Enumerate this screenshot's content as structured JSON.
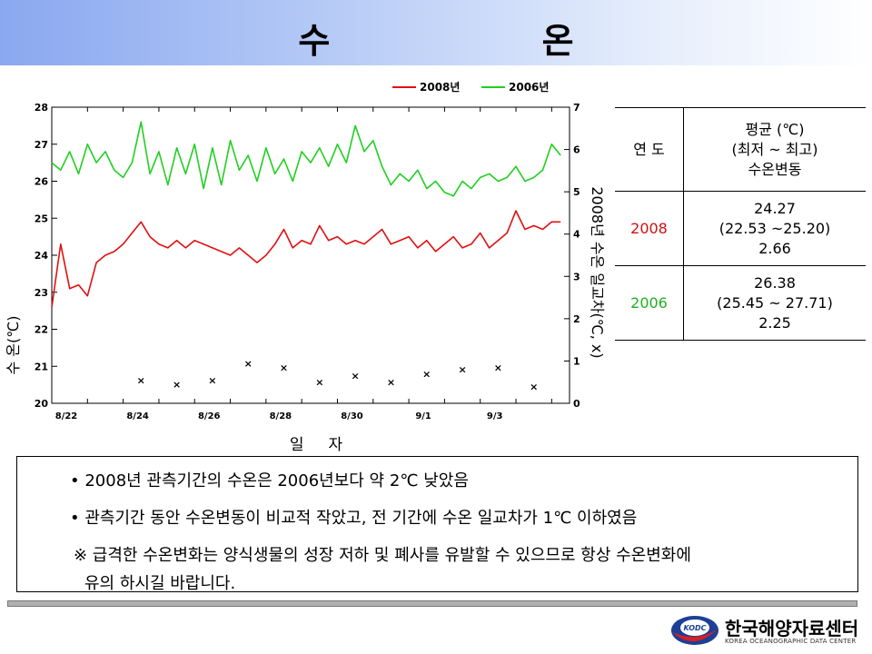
{
  "title": "수     온",
  "chart_data": {
    "type": "line",
    "legend": [
      "2008년",
      "2006년"
    ],
    "legend_position": "top-right",
    "x_ticks": [
      "8/22",
      "8/24",
      "8/26",
      "8/28",
      "8/30",
      "9/1",
      "9/3"
    ],
    "xlabel": "일     자",
    "ylabel_left": "수  온(℃)",
    "ylabel_right": "2008년 수온 일교차(℃, x)",
    "ylim_left": [
      20,
      28
    ],
    "ylim_right": [
      0,
      7
    ],
    "y_ticks_left": [
      "20",
      "21",
      "22",
      "23",
      "24",
      "25",
      "26",
      "27",
      "28"
    ],
    "y_ticks_right": [
      "0",
      "1",
      "2",
      "3",
      "4",
      "5",
      "6",
      "7"
    ],
    "series": [
      {
        "name": "2008년",
        "color": "#e01010",
        "x": [
          0,
          0.25,
          0.5,
          0.75,
          1,
          1.25,
          1.5,
          1.75,
          2,
          2.25,
          2.5,
          2.75,
          3,
          3.25,
          3.5,
          3.75,
          4,
          4.25,
          4.5,
          4.75,
          5,
          5.25,
          5.5,
          5.75,
          6,
          6.25,
          6.5,
          6.75,
          7,
          7.25,
          7.5,
          7.75,
          8,
          8.25,
          8.5,
          8.75,
          9,
          9.25,
          9.5,
          9.75,
          10,
          10.25,
          10.5,
          10.75,
          11,
          11.25,
          11.5,
          11.75,
          12,
          12.25,
          12.5,
          12.75,
          13,
          13.25,
          13.5,
          13.75,
          14,
          14.25
        ],
        "values": [
          22.6,
          24.3,
          23.1,
          23.2,
          22.9,
          23.8,
          24.0,
          24.1,
          24.3,
          24.6,
          24.9,
          24.5,
          24.3,
          24.2,
          24.4,
          24.2,
          24.4,
          24.3,
          24.2,
          24.1,
          24.0,
          24.2,
          24.0,
          23.8,
          24.0,
          24.3,
          24.7,
          24.2,
          24.4,
          24.3,
          24.8,
          24.4,
          24.5,
          24.3,
          24.4,
          24.3,
          24.5,
          24.7,
          24.3,
          24.4,
          24.5,
          24.2,
          24.4,
          24.1,
          24.3,
          24.5,
          24.2,
          24.3,
          24.6,
          24.2,
          24.4,
          24.6,
          25.2,
          24.7,
          24.8,
          24.7,
          24.9,
          24.9
        ]
      },
      {
        "name": "2006년",
        "color": "#20d020",
        "x": [
          0,
          0.25,
          0.5,
          0.75,
          1,
          1.25,
          1.5,
          1.75,
          2,
          2.25,
          2.5,
          2.75,
          3,
          3.25,
          3.5,
          3.75,
          4,
          4.25,
          4.5,
          4.75,
          5,
          5.25,
          5.5,
          5.75,
          6,
          6.25,
          6.5,
          6.75,
          7,
          7.25,
          7.5,
          7.75,
          8,
          8.25,
          8.5,
          8.75,
          9,
          9.25,
          9.5,
          9.75,
          10,
          10.25,
          10.5,
          10.75,
          11,
          11.25,
          11.5,
          11.75,
          12,
          12.25,
          12.5,
          12.75,
          13,
          13.25,
          13.5,
          13.75,
          14,
          14.25
        ],
        "values": [
          26.5,
          26.3,
          26.8,
          26.2,
          27.0,
          26.5,
          26.8,
          26.3,
          26.1,
          26.5,
          27.6,
          26.2,
          26.8,
          25.9,
          26.9,
          26.2,
          27.0,
          25.8,
          26.9,
          25.9,
          27.1,
          26.3,
          26.7,
          26.0,
          26.9,
          26.2,
          26.6,
          26.0,
          26.8,
          26.5,
          26.9,
          26.4,
          27.0,
          26.5,
          27.5,
          26.8,
          27.1,
          26.4,
          25.9,
          26.2,
          26.0,
          26.3,
          25.8,
          26.0,
          25.7,
          25.6,
          26.0,
          25.8,
          26.1,
          26.2,
          26.0,
          26.1,
          26.4,
          26.0,
          26.1,
          26.3,
          27.0,
          26.7
        ]
      },
      {
        "name": "",
        "color": "#000000",
        "type": "scatter",
        "axis": "right",
        "x": [
          2.5,
          3.5,
          4.5,
          5.5,
          6.5,
          7.5,
          8.5,
          9.5,
          10.5,
          11.5,
          12.5,
          13.5
        ],
        "values": [
          0.55,
          0.45,
          0.55,
          0.95,
          0.85,
          0.5,
          0.65,
          0.5,
          0.7,
          0.8,
          0.85,
          0.4
        ]
      }
    ]
  },
  "stats_table": {
    "header_label": "연 도",
    "header_lines": [
      "평균 (℃)",
      "(최저 ~ 최고)",
      "수온변동"
    ],
    "rows": [
      {
        "year": "2008",
        "lines": [
          "24.27",
          "(22.53 ~25.20)",
          "2.66"
        ]
      },
      {
        "year": "2006",
        "lines": [
          "26.38",
          "(25.45 ~ 27.71)",
          "2.25"
        ]
      }
    ]
  },
  "notes": {
    "line1": "• 2008년 관측기간의 수온은 2006년보다 약 2℃ 낮았음",
    "line2": "• 관측기간 동안 수온변동이 비교적 작았고, 전 기간에 수온 일교차가 1℃ 이하였음",
    "line3": "※ 급격한 수온변화는 양식생물의 성장 저하 및 폐사를 유발할 수 있으므로 항상 수온변화에",
    "line4": "유의 하시길 바랍니다."
  },
  "logo": {
    "icon_text": "KODC",
    "name": "한국해양자료센터",
    "subtitle": "KOREA OCEANOGRAPHIC DATA CENTER"
  }
}
